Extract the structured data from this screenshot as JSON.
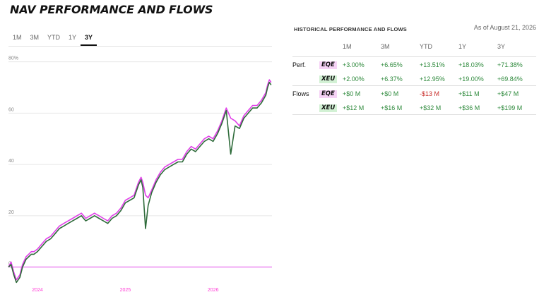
{
  "header": {
    "title": "NAV PERFORMANCE AND FLOWS"
  },
  "range_tabs": [
    {
      "label": "1M",
      "active": false
    },
    {
      "label": "3M",
      "active": false
    },
    {
      "label": "YTD",
      "active": false
    },
    {
      "label": "1Y",
      "active": false
    },
    {
      "label": "3Y",
      "active": true
    }
  ],
  "historical": {
    "title": "HISTORICAL PERFORMANCE AND FLOWS",
    "as_of": "As of August 21, 2026",
    "columns": [
      "",
      "",
      "1M",
      "3M",
      "YTD",
      "1Y",
      "3Y"
    ],
    "perf_label": "Perf.",
    "flows_label": "Flows",
    "perf": [
      {
        "ticker": "EQE",
        "values": [
          "+3.00%",
          "+6.65%",
          "+13.51%",
          "+18.03%",
          "+71.38%"
        ]
      },
      {
        "ticker": "XEU",
        "values": [
          "+2.00%",
          "+6.37%",
          "+12.95%",
          "+19.00%",
          "+69.84%"
        ]
      }
    ],
    "flows": [
      {
        "ticker": "EQE",
        "values": [
          "+$0 M",
          "+$0 M",
          "-$13 M",
          "+$11 M",
          "+$47 M"
        ]
      },
      {
        "ticker": "XEU",
        "values": [
          "+$12 M",
          "+$16 M",
          "+$32 M",
          "+$36 M",
          "+$199 M"
        ]
      }
    ]
  },
  "colors": {
    "eqe": "#e040e8",
    "xeu": "#2e6b3a",
    "positive": "#2f8a3d",
    "negative": "#c9302c",
    "axis_label": "#ff3cd6"
  },
  "chart_data": {
    "type": "line",
    "ytick_labels": [
      "0",
      "20",
      "40",
      "60",
      "80%"
    ],
    "yticks": [
      0,
      20,
      40,
      60,
      80
    ],
    "ylim": [
      -7,
      81
    ],
    "xtick_labels": [
      "2024",
      "2025",
      "2026"
    ],
    "xticks": [
      2024.0,
      2025.0,
      2026.0
    ],
    "xlim": [
      2023.67,
      2026.67
    ],
    "grid": true,
    "series": [
      {
        "name": "EQE",
        "x": [
          2023.67,
          2023.7,
          2023.73,
          2023.76,
          2023.8,
          2023.83,
          2023.87,
          2023.9,
          2023.93,
          2023.96,
          2024.0,
          2024.05,
          2024.1,
          2024.15,
          2024.2,
          2024.25,
          2024.3,
          2024.35,
          2024.4,
          2024.45,
          2024.5,
          2024.55,
          2024.6,
          2024.65,
          2024.7,
          2024.75,
          2024.8,
          2024.85,
          2024.9,
          2024.95,
          2025.0,
          2025.05,
          2025.1,
          2025.15,
          2025.18,
          2025.2,
          2025.23,
          2025.26,
          2025.3,
          2025.35,
          2025.4,
          2025.45,
          2025.5,
          2025.55,
          2025.6,
          2025.65,
          2025.7,
          2025.75,
          2025.8,
          2025.85,
          2025.9,
          2025.95,
          2026.0,
          2026.05,
          2026.1,
          2026.15,
          2026.2,
          2026.25,
          2026.3,
          2026.35,
          2026.4,
          2026.45,
          2026.5,
          2026.55,
          2026.6,
          2026.62,
          2026.64,
          2026.66
        ],
        "values": [
          0,
          2,
          -2,
          -5,
          -3,
          1,
          4,
          5,
          6,
          6,
          7,
          9,
          11,
          12,
          14,
          16,
          17,
          18,
          19,
          20,
          21,
          19,
          20,
          21,
          20,
          19,
          18,
          20,
          21,
          23,
          26,
          27,
          28,
          33,
          35,
          33,
          28,
          27,
          30,
          34,
          37,
          39,
          40,
          41,
          42,
          42,
          45,
          47,
          46,
          48,
          50,
          51,
          50,
          53,
          57,
          62,
          58,
          57,
          55,
          59,
          61,
          63,
          63,
          65,
          68,
          71,
          73,
          72
        ]
      },
      {
        "name": "XEU",
        "x": [
          2023.67,
          2023.7,
          2023.73,
          2023.76,
          2023.8,
          2023.83,
          2023.87,
          2023.9,
          2023.93,
          2023.96,
          2024.0,
          2024.05,
          2024.1,
          2024.15,
          2024.2,
          2024.25,
          2024.3,
          2024.35,
          2024.4,
          2024.45,
          2024.5,
          2024.55,
          2024.6,
          2024.65,
          2024.7,
          2024.75,
          2024.8,
          2024.85,
          2024.9,
          2024.95,
          2025.0,
          2025.05,
          2025.1,
          2025.15,
          2025.18,
          2025.2,
          2025.23,
          2025.26,
          2025.3,
          2025.35,
          2025.4,
          2025.45,
          2025.5,
          2025.55,
          2025.6,
          2025.65,
          2025.7,
          2025.75,
          2025.8,
          2025.85,
          2025.9,
          2025.95,
          2026.0,
          2026.05,
          2026.1,
          2026.15,
          2026.2,
          2026.25,
          2026.3,
          2026.35,
          2026.4,
          2026.45,
          2026.5,
          2026.55,
          2026.6,
          2026.62,
          2026.64,
          2026.66
        ],
        "values": [
          0,
          1,
          -3,
          -6,
          -4,
          0,
          3,
          4,
          5,
          5,
          6,
          8,
          10,
          11,
          13,
          15,
          16,
          17,
          18,
          19,
          20,
          18,
          19,
          20,
          19,
          18,
          17,
          19,
          20,
          22,
          25,
          26,
          27,
          32,
          34,
          31,
          15,
          24,
          29,
          33,
          36,
          38,
          39,
          40,
          41,
          41,
          44,
          46,
          45,
          47,
          49,
          50,
          49,
          52,
          56,
          61,
          44,
          55,
          54,
          58,
          60,
          62,
          62,
          64,
          67,
          70,
          72,
          71
        ]
      }
    ]
  }
}
